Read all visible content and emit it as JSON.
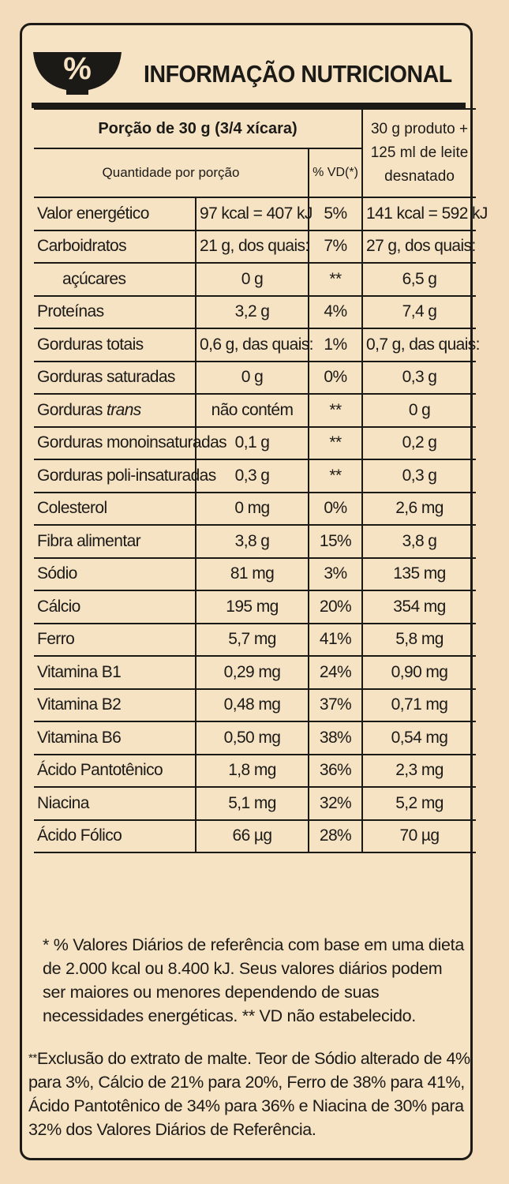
{
  "header": {
    "icon": "percent-bowl-icon",
    "title": "INFORMAÇÃO NUTRICIONAL",
    "icon_symbol": "%"
  },
  "table": {
    "portion_label": "Porção de 30 g (3/4 xícara)",
    "quantity_label": "Quantidade por porção",
    "vd_label": "% VD(*)",
    "milk_label": "30 g produto + 125 ml de leite desnatado",
    "rows": [
      {
        "name": "Valor energético",
        "qty": "97 kcal = 407 kJ",
        "vd": "5%",
        "milk": "141 kcal = 592 kJ"
      },
      {
        "name": "Carboidratos",
        "qty": "21 g, dos quais:",
        "vd": "7%",
        "milk": "27 g, dos quais:"
      },
      {
        "name": "açúcares",
        "qty": "0 g",
        "vd": "**",
        "milk": "6,5 g"
      },
      {
        "name": "Proteínas",
        "qty": "3,2 g",
        "vd": "4%",
        "milk": "7,4 g"
      },
      {
        "name": "Gorduras totais",
        "qty": "0,6 g, das quais:",
        "vd": "1%",
        "milk": "0,7 g, das quais:"
      },
      {
        "name": "Gorduras saturadas",
        "qty": "0 g",
        "vd": "0%",
        "milk": "0,3 g"
      },
      {
        "name": "Gorduras",
        "name_italic": "trans",
        "qty": "não contém",
        "vd": "**",
        "milk": "0 g"
      },
      {
        "name": "Gorduras monoinsaturadas",
        "qty": "0,1 g",
        "vd": "**",
        "milk": "0,2 g"
      },
      {
        "name": "Gorduras poli-insaturadas",
        "qty": "0,3 g",
        "vd": "**",
        "milk": "0,3 g"
      },
      {
        "name": "Colesterol",
        "qty": "0 mg",
        "vd": "0%",
        "milk": "2,6 mg"
      },
      {
        "name": "Fibra alimentar",
        "qty": "3,8 g",
        "vd": "15%",
        "milk": "3,8 g"
      },
      {
        "name": "Sódio",
        "qty": "81 mg",
        "vd": "3%",
        "milk": "135 mg"
      },
      {
        "name": "Cálcio",
        "qty": "195 mg",
        "vd": "20%",
        "milk": "354 mg"
      },
      {
        "name": "Ferro",
        "qty": "5,7 mg",
        "vd": "41%",
        "milk": "5,8 mg"
      },
      {
        "name": "Vitamina B1",
        "qty": "0,29 mg",
        "vd": "24%",
        "milk": "0,90 mg"
      },
      {
        "name": "Vitamina B2",
        "qty": "0,48 mg",
        "vd": "37%",
        "milk": "0,71 mg"
      },
      {
        "name": "Vitamina B6",
        "qty": "0,50 mg",
        "vd": "38%",
        "milk": "0,54 mg"
      },
      {
        "name": "Ácido Pantotênico",
        "qty": "1,8 mg",
        "vd": "36%",
        "milk": "2,3 mg"
      },
      {
        "name": "Niacina",
        "qty": "5,1 mg",
        "vd": "32%",
        "milk": "5,2 mg"
      },
      {
        "name": "Ácido Fólico",
        "qty": "66 µg",
        "vd": "28%",
        "milk": "70 µg"
      }
    ]
  },
  "footnotes": {
    "vd_note": "* % Valores Diários de referência com base em uma dieta de 2.000 kcal ou 8.400 kJ. Seus valores diários podem ser maiores ou menores dependendo de suas necessidades energéticas. ** VD não estabelecido.",
    "malt_stars": "**",
    "malt_note": "Exclusão do extrato de malte. Teor de Sódio alterado de 4% para 3%, Cálcio de 21% para 20%, Ferro de 38% para 41%, Ácido Pantotênico de 34% para 36% e Niacina de 30% para 32% dos Valores Diários de Referência."
  },
  "colors": {
    "background": "#f2dcbb",
    "ink": "#1c1a17"
  }
}
